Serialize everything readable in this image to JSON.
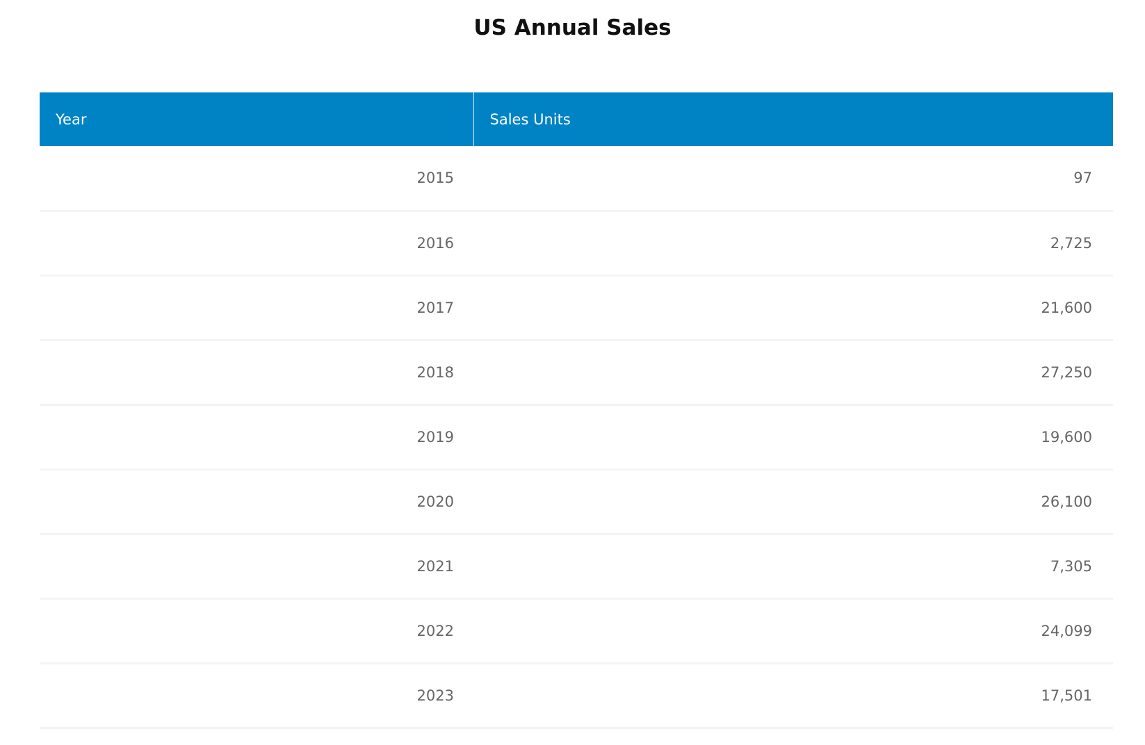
{
  "title": "US Annual Sales",
  "table": {
    "header": [
      "Year",
      "Sales Units"
    ],
    "rows": [
      [
        "2015",
        "97"
      ],
      [
        "2016",
        "2,725"
      ],
      [
        "2017",
        "21,600"
      ],
      [
        "2018",
        "27,250"
      ],
      [
        "2019",
        "19,600"
      ],
      [
        "2020",
        "26,100"
      ],
      [
        "2021",
        "7,305"
      ],
      [
        "2022",
        "24,099"
      ],
      [
        "2023",
        "17,501"
      ]
    ]
  }
}
